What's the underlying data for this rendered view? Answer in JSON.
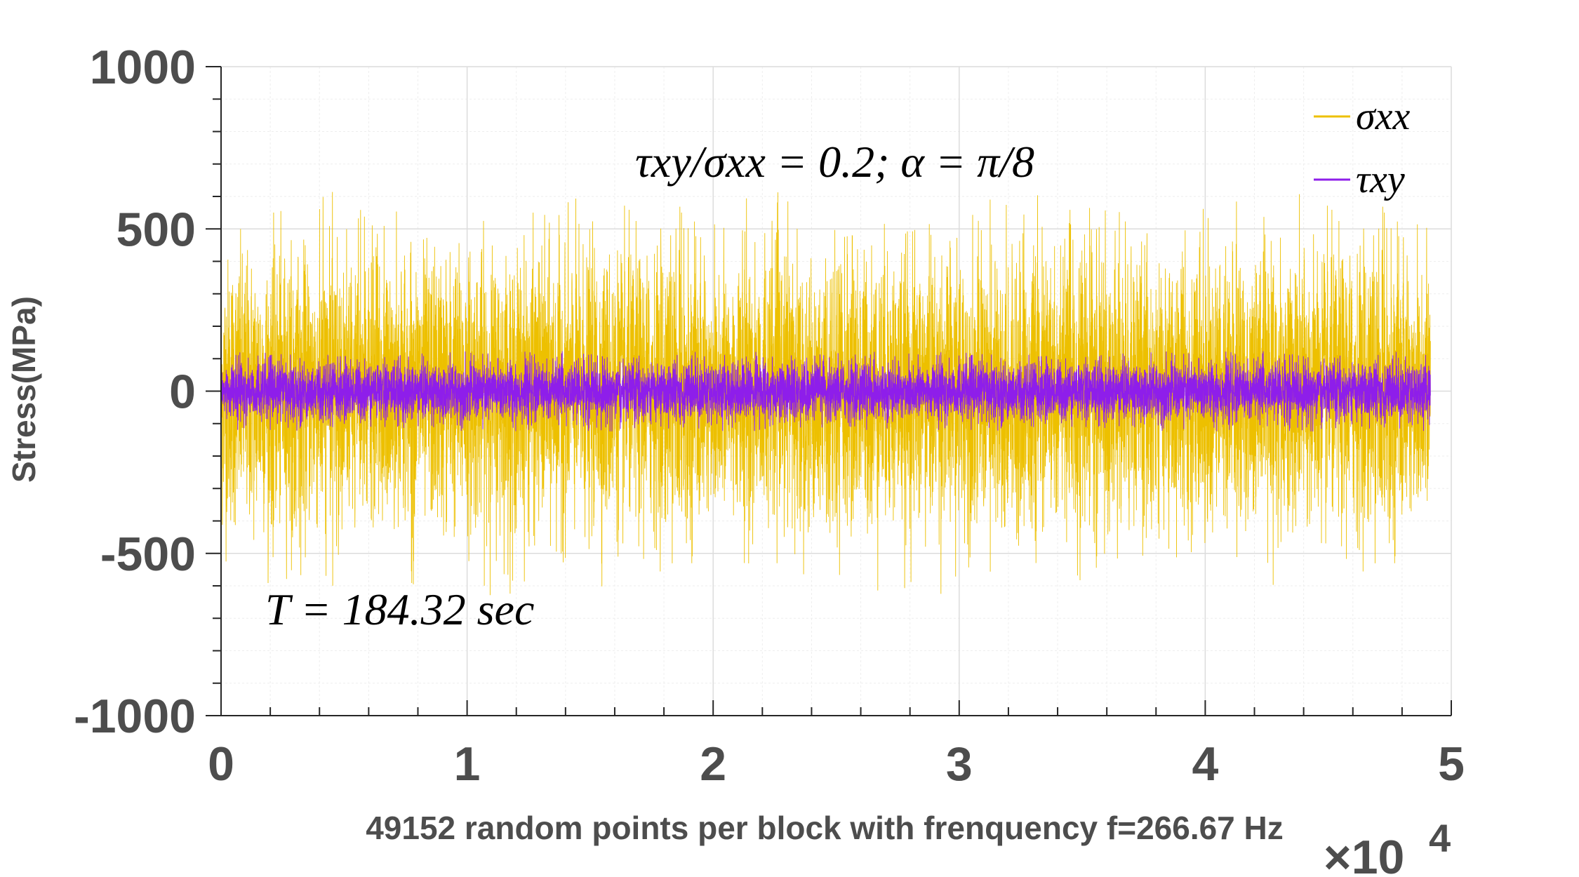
{
  "chart_data": {
    "type": "line",
    "xlabel": "49152 random points per block with frenquency f=266.67 Hz",
    "ylabel": "Stress(MPa)",
    "xlim": [
      0,
      5
    ],
    "ylim": [
      -1000,
      1000
    ],
    "x_multiplier": "×10",
    "x_multiplier_exponent": "4",
    "x_ticks": [
      "0",
      "1",
      "2",
      "3",
      "4",
      "5"
    ],
    "y_ticks": [
      "1000",
      "500",
      "0",
      "-500",
      "-1000"
    ],
    "x_data_range": [
      0,
      4.9152
    ],
    "grid": "on",
    "legend_position": "top-right",
    "annotations": {
      "ratio": "τxy/σxx = 0.2;  α = π/8",
      "period": "T = 184.32 sec"
    },
    "series": [
      {
        "name": "σxx",
        "color": "#EDC000",
        "amplitude_typical": 200,
        "amplitude_max": 640,
        "mean": 0
      },
      {
        "name": "τxy",
        "color": "#8E1EEA",
        "amplitude_typical": 45,
        "amplitude_max": 125,
        "mean": 0
      }
    ]
  }
}
